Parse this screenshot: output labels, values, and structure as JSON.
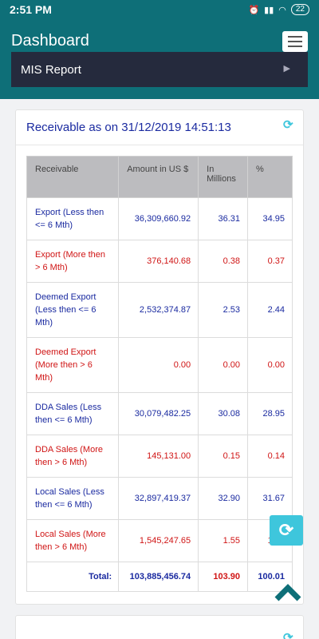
{
  "status_bar": {
    "time": "2:51 PM",
    "battery": "22"
  },
  "header": {
    "title": "Dashboard",
    "section": "MIS Report"
  },
  "card": {
    "title": "Receivable as on 31/12/2019 14:51:13",
    "columns": [
      "Receivable",
      "Amount in US $",
      "In Millions",
      "%"
    ],
    "rows": [
      {
        "label": "Export (Less then <= 6 Mth)",
        "amount": "36,309,660.92",
        "millions": "36.31",
        "pct": "34.95",
        "color": "blue"
      },
      {
        "label": "Export (More then > 6 Mth)",
        "amount": "376,140.68",
        "millions": "0.38",
        "pct": "0.37",
        "color": "red"
      },
      {
        "label": "Deemed Export (Less then <= 6 Mth)",
        "amount": "2,532,374.87",
        "millions": "2.53",
        "pct": "2.44",
        "color": "blue"
      },
      {
        "label": "Deemed Export (More then > 6 Mth)",
        "amount": "0.00",
        "millions": "0.00",
        "pct": "0.00",
        "color": "red"
      },
      {
        "label": "DDA Sales (Less then <= 6 Mth)",
        "amount": "30,079,482.25",
        "millions": "30.08",
        "pct": "28.95",
        "color": "blue"
      },
      {
        "label": "DDA Sales (More then > 6 Mth)",
        "amount": "145,131.00",
        "millions": "0.15",
        "pct": "0.14",
        "color": "red"
      },
      {
        "label": "Local Sales (Less then <= 6 Mth)",
        "amount": "32,897,419.37",
        "millions": "32.90",
        "pct": "31.67",
        "color": "blue"
      },
      {
        "label": "Local Sales (More then > 6 Mth)",
        "amount": "1,545,247.65",
        "millions": "1.55",
        "pct": "1.49",
        "color": "red"
      }
    ],
    "total": {
      "label": "Total:",
      "amount": "103,885,456.74",
      "millions": "103.90",
      "pct": "100.01"
    }
  },
  "icons": {
    "refresh": "refresh-icon",
    "menu": "hamburger-menu-icon",
    "scroll_top": "chevron-up-icon"
  },
  "colors": {
    "primary": "#0e6f78",
    "dark_bar": "#252a3d",
    "accent": "#3ec6dc",
    "positive": "#1a2aa0",
    "negative": "#d01515"
  }
}
